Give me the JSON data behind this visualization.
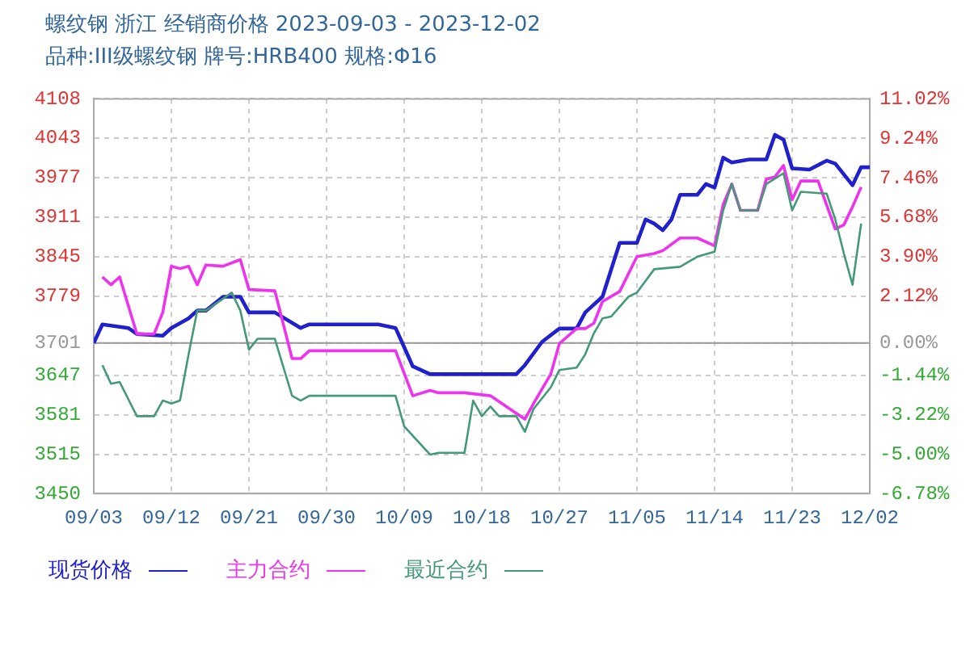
{
  "chart_data": {
    "type": "line",
    "title": "螺纹钢 浙江 经销商价格 2023-09-03 - 2023-12-02",
    "subtitle": "品种:III级螺纹钢 牌号:HRB400 规格:Φ16",
    "xlim": [
      "2023-09-03",
      "2023-12-02"
    ],
    "xticks": [
      {
        "value": "2023-09-03",
        "label": "09/03"
      },
      {
        "value": "2023-09-12",
        "label": "09/12"
      },
      {
        "value": "2023-09-21",
        "label": "09/21"
      },
      {
        "value": "2023-09-30",
        "label": "09/30"
      },
      {
        "value": "2023-10-09",
        "label": "10/09"
      },
      {
        "value": "2023-10-18",
        "label": "10/18"
      },
      {
        "value": "2023-10-27",
        "label": "10/27"
      },
      {
        "value": "2023-11-05",
        "label": "11/05"
      },
      {
        "value": "2023-11-14",
        "label": "11/14"
      },
      {
        "value": "2023-11-23",
        "label": "11/23"
      },
      {
        "value": "2023-12-02",
        "label": "12/02"
      }
    ],
    "ylim": [
      3450,
      4108
    ],
    "yticks": [
      3450,
      3515,
      3581,
      3647,
      3701,
      3779,
      3845,
      3911,
      3977,
      4043,
      4108
    ],
    "y2lim": [
      -6.78,
      11.02
    ],
    "y2ticks": [
      {
        "value": -6.78,
        "label": "-6.78%"
      },
      {
        "value": -5.0,
        "label": "-5.00%"
      },
      {
        "value": -3.22,
        "label": "-3.22%"
      },
      {
        "value": -1.44,
        "label": "-1.44%"
      },
      {
        "value": 0,
        "label": "0.00%"
      },
      {
        "value": 2.12,
        "label": "2.12%"
      },
      {
        "value": 3.9,
        "label": "3.90%"
      },
      {
        "value": 5.68,
        "label": "5.68%"
      },
      {
        "value": 7.46,
        "label": "7.46%"
      },
      {
        "value": 9.24,
        "label": "9.24%"
      },
      {
        "value": 11.02,
        "label": "11.02%"
      }
    ],
    "grid": true,
    "legend": "bottom",
    "ref_lines": [
      {
        "axis": "y",
        "value": 3701,
        "color": "#999999"
      }
    ],
    "series": [
      {
        "name": "现货价格",
        "color": "#2020cc",
        "x": [
          "2023-09-03",
          "2023-09-04",
          "2023-09-07",
          "2023-09-08",
          "2023-09-11",
          "2023-09-12",
          "2023-09-14",
          "2023-09-15",
          "2023-09-16",
          "2023-09-18",
          "2023-09-20",
          "2023-09-21",
          "2023-09-24",
          "2023-09-27",
          "2023-09-28",
          "2023-10-06",
          "2023-10-08",
          "2023-10-10",
          "2023-10-12",
          "2023-10-16",
          "2023-10-22",
          "2023-10-23",
          "2023-10-25",
          "2023-10-27",
          "2023-10-29",
          "2023-10-30",
          "2023-11-01",
          "2023-11-03",
          "2023-11-05",
          "2023-11-06",
          "2023-11-07",
          "2023-11-08",
          "2023-11-09",
          "2023-11-10",
          "2023-11-12",
          "2023-11-13",
          "2023-11-14",
          "2023-11-15",
          "2023-11-16",
          "2023-11-18",
          "2023-11-20",
          "2023-11-21",
          "2023-11-22",
          "2023-11-23",
          "2023-11-25",
          "2023-11-27",
          "2023-11-28",
          "2023-11-30",
          "2023-12-01",
          "2023-12-02"
        ],
        "values": [
          3701,
          3732,
          3726,
          3716,
          3713,
          3726,
          3742,
          3755,
          3755,
          3778,
          3778,
          3752,
          3752,
          3726,
          3732,
          3732,
          3726,
          3662,
          3649,
          3649,
          3649,
          3664,
          3703,
          3725,
          3725,
          3752,
          3778,
          3868,
          3868,
          3907,
          3900,
          3889,
          3907,
          3948,
          3948,
          3966,
          3960,
          4010,
          4002,
          4007,
          4007,
          4048,
          4040,
          3992,
          3990,
          4005,
          4000,
          3964,
          3994,
          3994
        ]
      },
      {
        "name": "主力合约",
        "color": "#ee33ee",
        "x": [
          "2023-09-04",
          "2023-09-05",
          "2023-09-06",
          "2023-09-08",
          "2023-09-10",
          "2023-09-11",
          "2023-09-12",
          "2023-09-13",
          "2023-09-14",
          "2023-09-15",
          "2023-09-16",
          "2023-09-18",
          "2023-09-20",
          "2023-09-21",
          "2023-09-24",
          "2023-09-26",
          "2023-09-27",
          "2023-09-28",
          "2023-10-08",
          "2023-10-10",
          "2023-10-12",
          "2023-10-13",
          "2023-10-16",
          "2023-10-19",
          "2023-10-23",
          "2023-10-24",
          "2023-10-26",
          "2023-10-27",
          "2023-10-29",
          "2023-10-30",
          "2023-10-31",
          "2023-11-01",
          "2023-11-03",
          "2023-11-05",
          "2023-11-07",
          "2023-11-08",
          "2023-11-10",
          "2023-11-12",
          "2023-11-14",
          "2023-11-15",
          "2023-11-16",
          "2023-11-17",
          "2023-11-19",
          "2023-11-20",
          "2023-11-21",
          "2023-11-22",
          "2023-11-23",
          "2023-11-24",
          "2023-11-26",
          "2023-11-28",
          "2023-11-29",
          "2023-11-30",
          "2023-12-01"
        ],
        "values": [
          3811,
          3798,
          3811,
          3716,
          3716,
          3752,
          3829,
          3825,
          3829,
          3798,
          3831,
          3829,
          3840,
          3790,
          3788,
          3675,
          3675,
          3688,
          3688,
          3613,
          3622,
          3618,
          3618,
          3613,
          3574,
          3600,
          3649,
          3700,
          3725,
          3725,
          3734,
          3770,
          3787,
          3845,
          3850,
          3855,
          3876,
          3876,
          3863,
          3932,
          3966,
          3922,
          3922,
          3974,
          3978,
          3997,
          3940,
          3971,
          3971,
          3891,
          3898,
          3928,
          3961
        ]
      },
      {
        "name": "最近合约",
        "color": "#449977",
        "x": [
          "2023-09-04",
          "2023-09-05",
          "2023-09-06",
          "2023-09-08",
          "2023-09-10",
          "2023-09-11",
          "2023-09-12",
          "2023-09-13",
          "2023-09-14",
          "2023-09-15",
          "2023-09-16",
          "2023-09-19",
          "2023-09-20",
          "2023-09-21",
          "2023-09-22",
          "2023-09-24",
          "2023-09-26",
          "2023-09-27",
          "2023-09-28",
          "2023-10-08",
          "2023-10-09",
          "2023-10-12",
          "2023-10-13",
          "2023-10-16",
          "2023-10-17",
          "2023-10-18",
          "2023-10-19",
          "2023-10-20",
          "2023-10-22",
          "2023-10-23",
          "2023-10-24",
          "2023-10-26",
          "2023-10-27",
          "2023-10-29",
          "2023-10-30",
          "2023-10-31",
          "2023-11-01",
          "2023-11-02",
          "2023-11-04",
          "2023-11-05",
          "2023-11-07",
          "2023-11-10",
          "2023-11-12",
          "2023-11-14",
          "2023-11-15",
          "2023-11-16",
          "2023-11-17",
          "2023-11-19",
          "2023-11-20",
          "2023-11-21",
          "2023-11-22",
          "2023-11-23",
          "2023-11-24",
          "2023-11-27",
          "2023-11-28",
          "2023-11-29",
          "2023-11-30",
          "2023-12-01"
        ],
        "values": [
          3664,
          3633,
          3636,
          3579,
          3579,
          3605,
          3600,
          3605,
          3682,
          3755,
          3755,
          3785,
          3755,
          3690,
          3708,
          3708,
          3613,
          3605,
          3613,
          3613,
          3562,
          3515,
          3518,
          3518,
          3605,
          3579,
          3595,
          3579,
          3579,
          3553,
          3591,
          3627,
          3656,
          3660,
          3682,
          3717,
          3742,
          3745,
          3778,
          3785,
          3824,
          3828,
          3845,
          3853,
          3922,
          3966,
          3922,
          3922,
          3966,
          3975,
          3984,
          3922,
          3953,
          3950,
          3907,
          3850,
          3798,
          3900
        ]
      }
    ]
  }
}
